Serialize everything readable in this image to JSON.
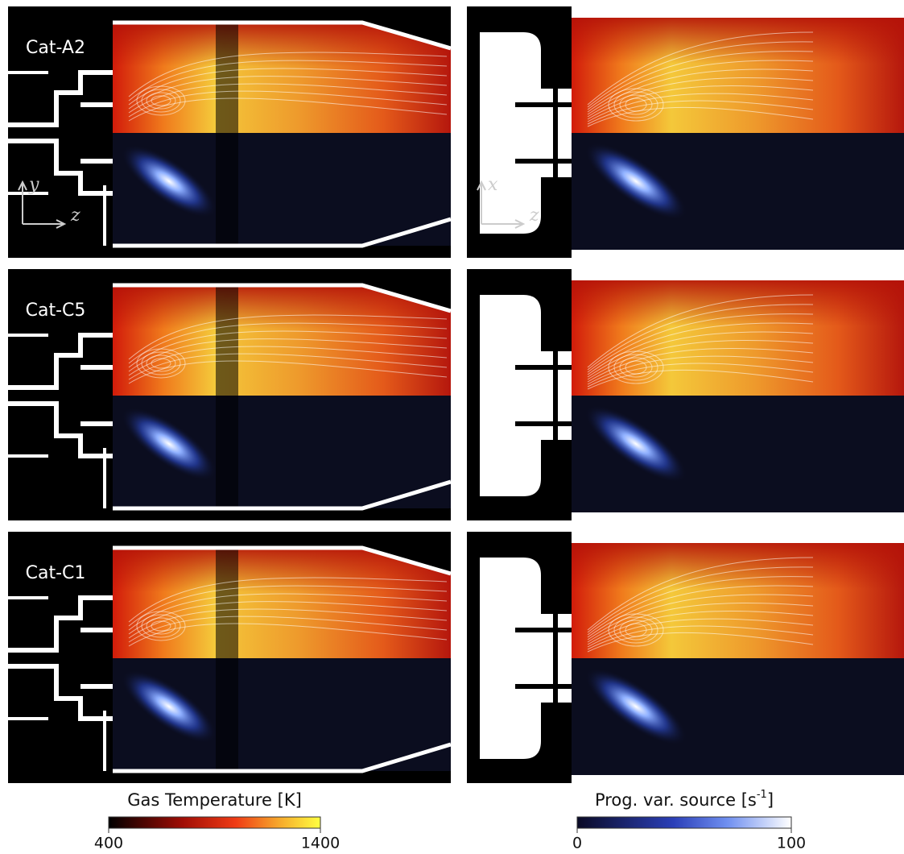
{
  "panels": [
    {
      "label": "Cat-A2",
      "left_axes": {
        "vertical": "y",
        "horizontal": "z"
      },
      "right_axes": {
        "vertical": "x",
        "horizontal": "z"
      }
    },
    {
      "label": "Cat-C5"
    },
    {
      "label": "Cat-C1"
    }
  ],
  "colorbars": [
    {
      "title": "Gas Temperature [K]",
      "min": 400,
      "max": 1400
    },
    {
      "title": "Prog. var. source [s",
      "title_superscript": "-1",
      "title_end": "]",
      "min": 0,
      "max": 100
    }
  ]
}
